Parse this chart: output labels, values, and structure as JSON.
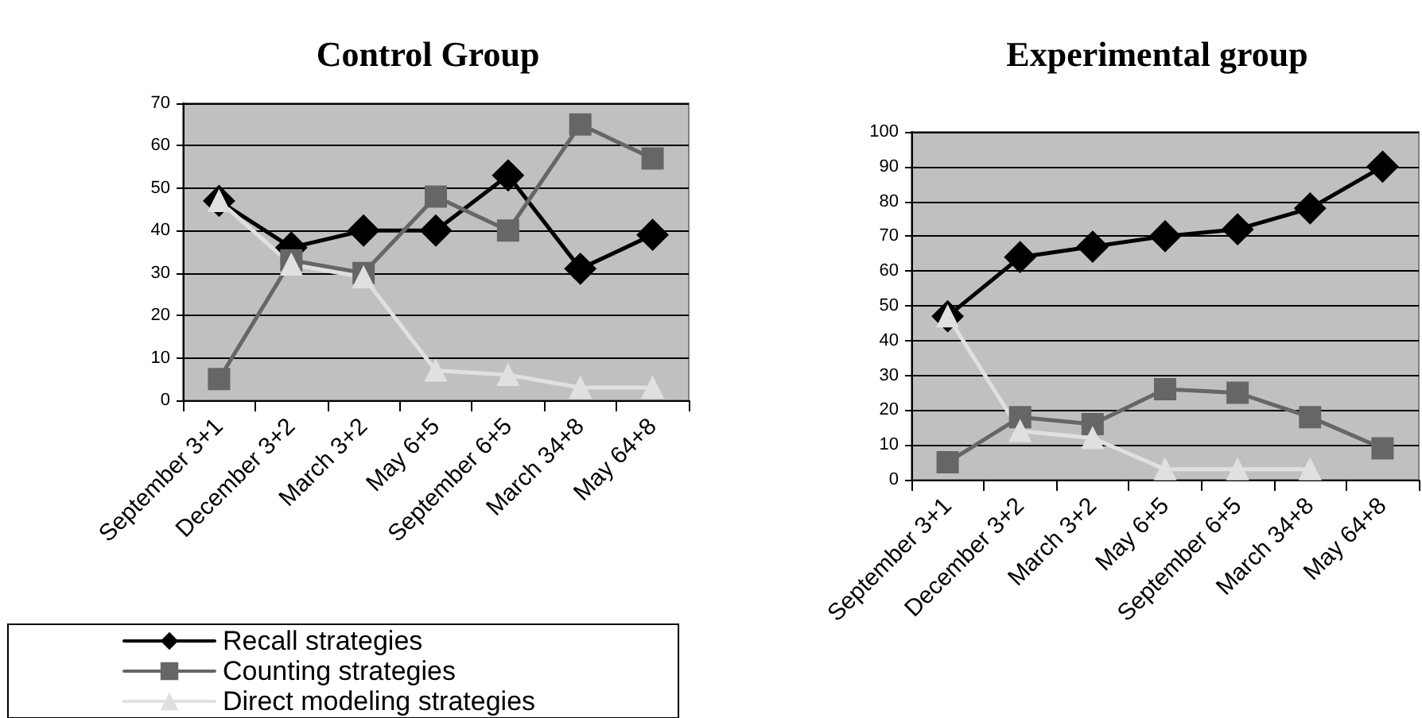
{
  "chart_data": [
    {
      "type": "line",
      "title": "Control Group",
      "categories": [
        "September 3+1",
        "December 3+2",
        "March 3+2",
        "May 6+5",
        "September 6+5",
        "March 34+8",
        "May 64+8"
      ],
      "series": [
        {
          "name": "Recall strategies",
          "color": "#000000",
          "marker": "diamond",
          "values": [
            47,
            36,
            40,
            40,
            53,
            31,
            39
          ]
        },
        {
          "name": "Counting strategies",
          "color": "#666666",
          "marker": "square",
          "values": [
            5,
            33,
            30,
            48,
            40,
            65,
            57
          ]
        },
        {
          "name": "Direct modeling strategies",
          "color": "#e0e0e0",
          "marker": "triangle",
          "values": [
            47,
            32,
            29,
            7,
            6,
            3,
            3
          ]
        }
      ],
      "ylim": [
        0,
        70
      ],
      "yticks": [
        0,
        10,
        20,
        30,
        40,
        50,
        60,
        70
      ],
      "grid": "y",
      "legend": "bottom left"
    },
    {
      "type": "line",
      "title": "Experimental group",
      "categories": [
        "September 3+1",
        "December 3+2",
        "March 3+2",
        "May 6+5",
        "September 6+5",
        "March 34+8",
        "May 64+8"
      ],
      "series": [
        {
          "color": "#000000",
          "marker": "diamond",
          "values": [
            47,
            64,
            67,
            70,
            72,
            78,
            90
          ]
        },
        {
          "color": "#666666",
          "marker": "square",
          "values": [
            5,
            18,
            16,
            26,
            25,
            18,
            9
          ]
        },
        {
          "color": "#e0e0e0",
          "marker": "triangle",
          "values": [
            47,
            14,
            12,
            3,
            3,
            3,
            null
          ]
        }
      ],
      "ylim": [
        0,
        100
      ],
      "yticks": [
        0,
        10,
        20,
        30,
        40,
        50,
        60,
        70,
        80,
        90,
        100
      ],
      "grid": "y"
    }
  ]
}
